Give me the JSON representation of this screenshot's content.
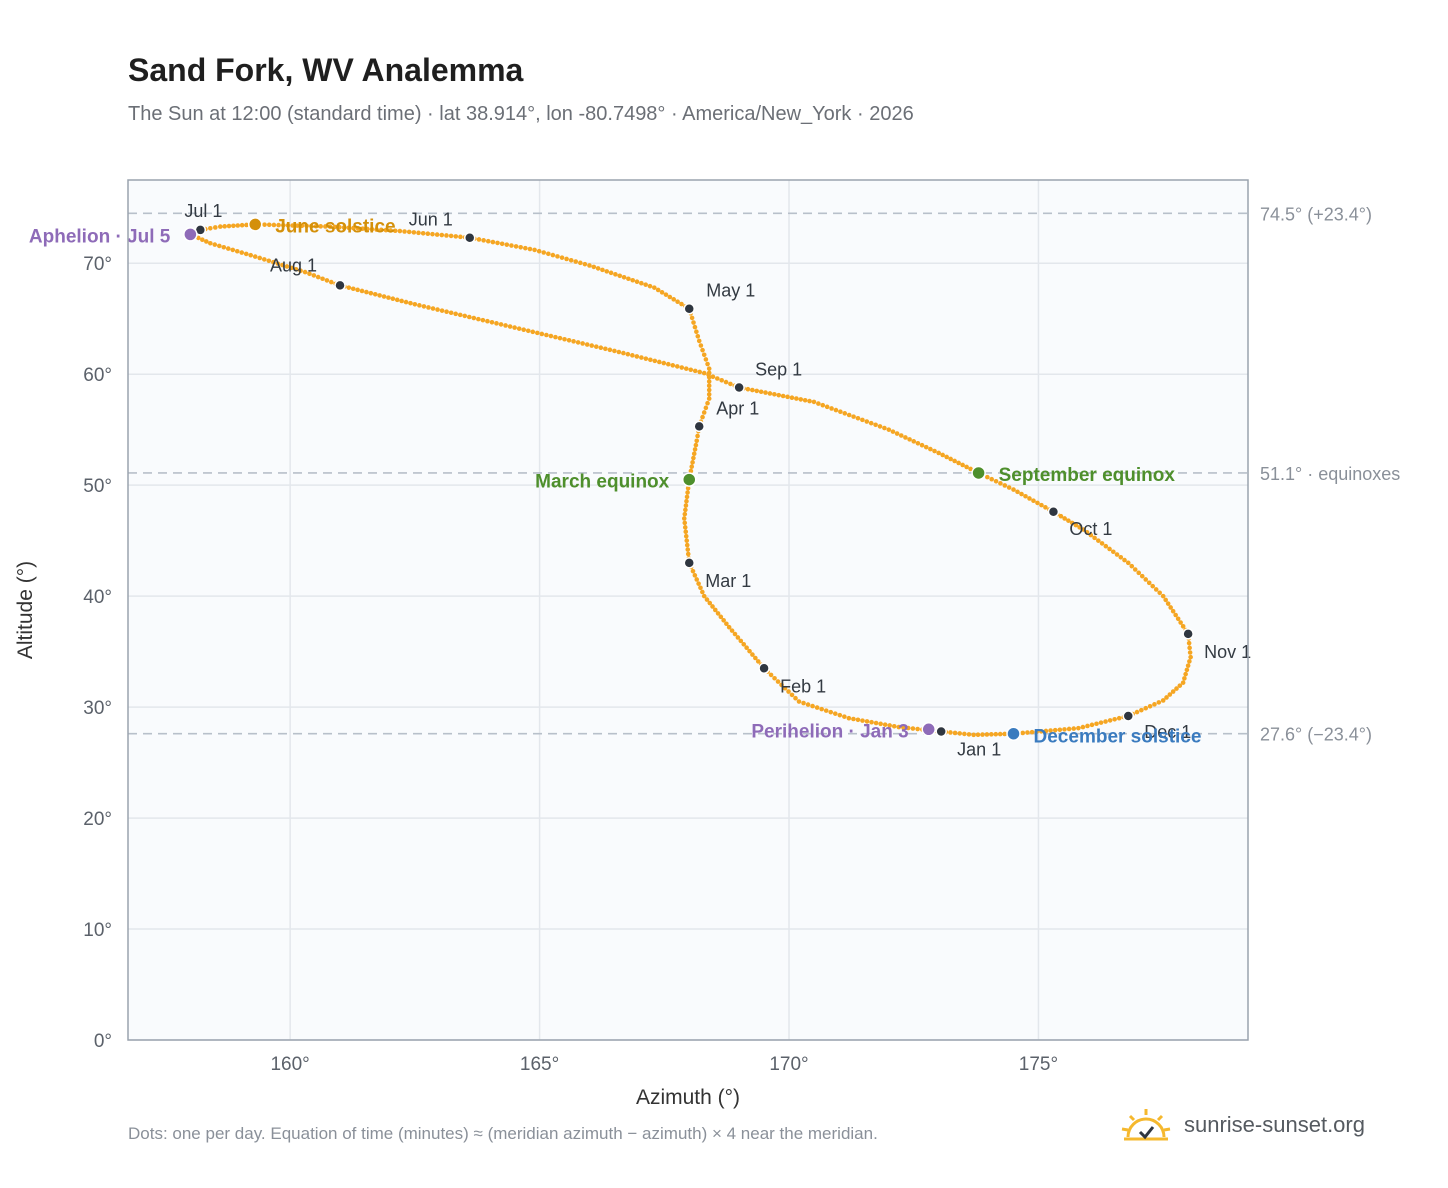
{
  "header": {
    "title": "Sand Fork, WV Analemma",
    "subtitle": "The Sun at 12:00 (standard time) · lat 38.914°, lon -80.7498° · America/New_York · 2026"
  },
  "footer": {
    "note": "Dots: one per day. Equation of time (minutes) ≈ (meridian azimuth − azimuth) × 4 near the meridian.",
    "brand": "sunrise-sunset.org"
  },
  "colors": {
    "path": "#f5a623",
    "month": "#2f3640",
    "solstice_june": "#d4900a",
    "solstice_december": "#3a7bbf",
    "equinox": "#4e8f2c",
    "apsis": "#8e6bb8",
    "refline": "#b8c0ca",
    "grid": "#e3e7ec",
    "plot_bg": "#f9fbfd",
    "axis": "#9aa3ae"
  },
  "chart_data": {
    "type": "scatter",
    "xlabel": "Azimuth (°)",
    "ylabel": "Altitude (°)",
    "xlim": [
      156.75,
      179.2
    ],
    "ylim": [
      0,
      77.5
    ],
    "xticks": [
      160,
      165,
      170,
      175
    ],
    "xtick_labels": [
      "160°",
      "165°",
      "170°",
      "175°"
    ],
    "yticks": [
      0,
      10,
      20,
      30,
      40,
      50,
      60,
      70
    ],
    "ytick_labels": [
      "0°",
      "10°",
      "20°",
      "30°",
      "40°",
      "50°",
      "60°",
      "70°"
    ],
    "grid": true,
    "series": [
      {
        "points_per": "day",
        "points": [
          [
            173.05,
            27.8
          ],
          [
            172.2,
            28.2
          ],
          [
            171.2,
            29.0
          ],
          [
            170.2,
            30.5
          ],
          [
            169.5,
            33.5
          ],
          [
            168.8,
            37.2
          ],
          [
            168.3,
            40.0
          ],
          [
            168.0,
            43.0
          ],
          [
            167.9,
            47.0
          ],
          [
            168.0,
            50.5
          ],
          [
            168.15,
            54.0
          ],
          [
            168.2,
            55.3
          ],
          [
            168.4,
            57.8
          ],
          [
            168.4,
            60.5
          ],
          [
            168.2,
            63.0
          ],
          [
            168.0,
            65.9
          ],
          [
            167.3,
            67.8
          ],
          [
            166.0,
            69.8
          ],
          [
            164.9,
            71.2
          ],
          [
            163.6,
            72.3
          ],
          [
            162.2,
            72.9
          ],
          [
            160.8,
            73.3
          ],
          [
            159.3,
            73.5
          ],
          [
            158.6,
            73.3
          ],
          [
            158.2,
            73.0
          ],
          [
            158.0,
            72.6
          ],
          [
            158.4,
            71.8
          ],
          [
            159.3,
            70.6
          ],
          [
            160.3,
            69.2
          ],
          [
            161.0,
            68.0
          ],
          [
            162.5,
            66.3
          ],
          [
            164.5,
            64.2
          ],
          [
            166.5,
            62.1
          ],
          [
            168.3,
            60.1
          ],
          [
            169.0,
            58.8
          ],
          [
            170.5,
            57.5
          ],
          [
            172.0,
            55.0
          ],
          [
            173.0,
            52.9
          ],
          [
            173.8,
            51.1
          ],
          [
            174.5,
            49.6
          ],
          [
            175.3,
            47.6
          ],
          [
            175.9,
            46.0
          ],
          [
            176.8,
            43.0
          ],
          [
            177.5,
            40.0
          ],
          [
            178.0,
            36.6
          ],
          [
            178.05,
            34.5
          ],
          [
            177.9,
            32.2
          ],
          [
            177.5,
            30.6
          ],
          [
            176.8,
            29.2
          ],
          [
            175.8,
            28.1
          ],
          [
            174.5,
            27.6
          ],
          [
            173.7,
            27.5
          ],
          [
            173.05,
            27.8
          ]
        ]
      }
    ],
    "month_markers": [
      {
        "label": "Jan 1",
        "x": 173.05,
        "y": 27.8
      },
      {
        "label": "Feb 1",
        "x": 169.5,
        "y": 33.5
      },
      {
        "label": "Mar 1",
        "x": 168.0,
        "y": 43.0
      },
      {
        "label": "Apr 1",
        "x": 168.2,
        "y": 55.3
      },
      {
        "label": "May 1",
        "x": 168.0,
        "y": 65.9
      },
      {
        "label": "Jun 1",
        "x": 163.6,
        "y": 72.3
      },
      {
        "label": "Jul 1",
        "x": 158.2,
        "y": 73.0
      },
      {
        "label": "Aug 1",
        "x": 161.0,
        "y": 68.0
      },
      {
        "label": "Sep 1",
        "x": 169.0,
        "y": 58.8
      },
      {
        "label": "Oct 1",
        "x": 175.3,
        "y": 47.6
      },
      {
        "label": "Nov 1",
        "x": 178.0,
        "y": 36.6
      },
      {
        "label": "Dec 1",
        "x": 176.8,
        "y": 29.2
      }
    ],
    "events": [
      {
        "label": "June solstice",
        "x": 159.3,
        "y": 73.5,
        "kind": "solstice_june"
      },
      {
        "label": "December solstice",
        "x": 174.5,
        "y": 27.6,
        "kind": "solstice_december"
      },
      {
        "label": "March equinox",
        "x": 168.0,
        "y": 50.5,
        "kind": "equinox"
      },
      {
        "label": "September equinox",
        "x": 173.8,
        "y": 51.1,
        "kind": "equinox"
      },
      {
        "label": "Aphelion · Jul 5",
        "x": 158.0,
        "y": 72.6,
        "kind": "apsis"
      },
      {
        "label": "Perihelion · Jan 3",
        "x": 172.8,
        "y": 28.0,
        "kind": "apsis"
      }
    ],
    "reference_lines": [
      {
        "y": 74.5,
        "label": "74.5° (+23.4°)"
      },
      {
        "y": 51.1,
        "label": "51.1° · equinoxes"
      },
      {
        "y": 27.6,
        "label": "27.6° (−23.4°)"
      }
    ]
  }
}
